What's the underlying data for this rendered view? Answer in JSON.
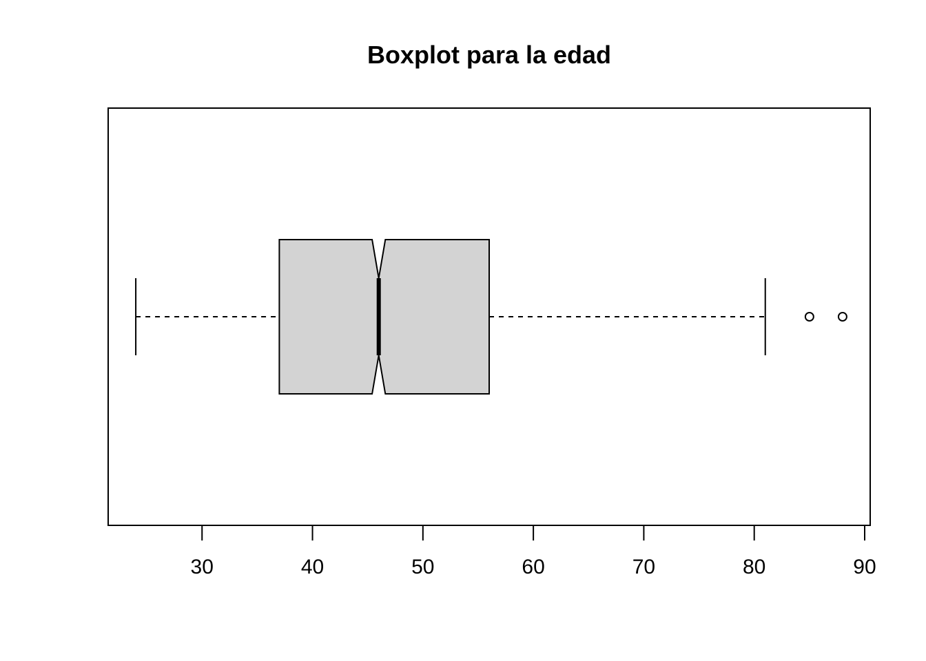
{
  "chart_data": {
    "type": "boxplot",
    "title": "Boxplot para la edad",
    "orientation": "horizontal",
    "notched": true,
    "xlim": [
      21.5,
      90.5
    ],
    "ticks": [
      30,
      40,
      50,
      60,
      70,
      80,
      90
    ],
    "box": {
      "whisker_low": 24,
      "q1": 37,
      "median": 46,
      "q3": 56,
      "whisker_high": 81,
      "notch_low": 45.4,
      "notch_high": 46.6,
      "outliers": [
        85,
        88
      ],
      "fill_color": "#d3d3d3"
    }
  }
}
